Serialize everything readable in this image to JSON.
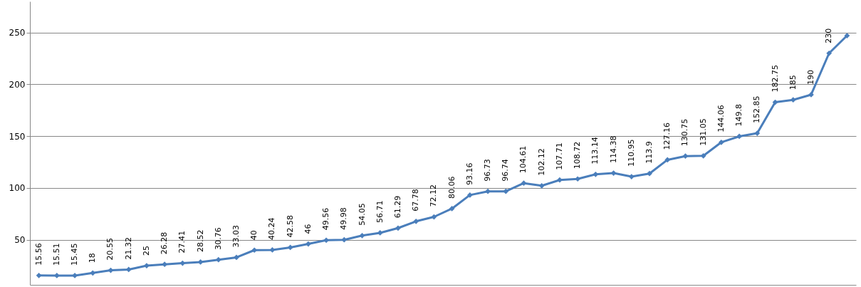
{
  "chart_data": {
    "type": "line",
    "categories": [
      null,
      null,
      null,
      null,
      null,
      null,
      null,
      null,
      null,
      null,
      null,
      null,
      null,
      null,
      null,
      null,
      null,
      null,
      null,
      null,
      null,
      null,
      null,
      null,
      null,
      null,
      null,
      null,
      null,
      null,
      null,
      null,
      null,
      null,
      null,
      null,
      null,
      null,
      null,
      null,
      null,
      null,
      null,
      null,
      null,
      null
    ],
    "series": [
      {
        "color": "#4a7ebb",
        "values": [
          15.56,
          15.51,
          15.45,
          18,
          20.55,
          21.32,
          25,
          26.28,
          27.41,
          28.52,
          30.76,
          33.03,
          40,
          40.24,
          42.58,
          46,
          49.56,
          49.98,
          54.05,
          56.71,
          61.29,
          67.78,
          72.12,
          80.06,
          93.16,
          96.73,
          96.74,
          104.61,
          102.12,
          107.71,
          108.72,
          113.14,
          114.38,
          110.95,
          113.9,
          127.16,
          130.75,
          131.05,
          144.06,
          149.8,
          152.85,
          182.75,
          185,
          190,
          230,
          247
        ],
        "value_labels": [
          "15.56",
          "15.51",
          "15.45",
          "18",
          "20.55",
          "21.32",
          "25",
          "26.28",
          "27.41",
          "28.52",
          "30.76",
          "33.03",
          "40",
          "40.24",
          "42.58",
          "46",
          "49.56",
          "49.98",
          "54.05",
          "56.71",
          "61.29",
          "67.78",
          "72.12",
          "80.06",
          "93.16",
          "96.73",
          "96.74",
          "104.61",
          "102.12",
          "107.71",
          "108.72",
          "113.14",
          "114.38",
          "110.95",
          "113.9",
          "127.16",
          "130.75",
          "131.05",
          "144.06",
          "149.8",
          "152.85",
          "182.75",
          "185",
          "190",
          "230",
          null
        ]
      }
    ],
    "ylim": [
      6.5,
      280
    ],
    "yticks": [
      50,
      100,
      150,
      200,
      250
    ],
    "grid": "y",
    "marker": "diamond",
    "line_style": "solid"
  }
}
